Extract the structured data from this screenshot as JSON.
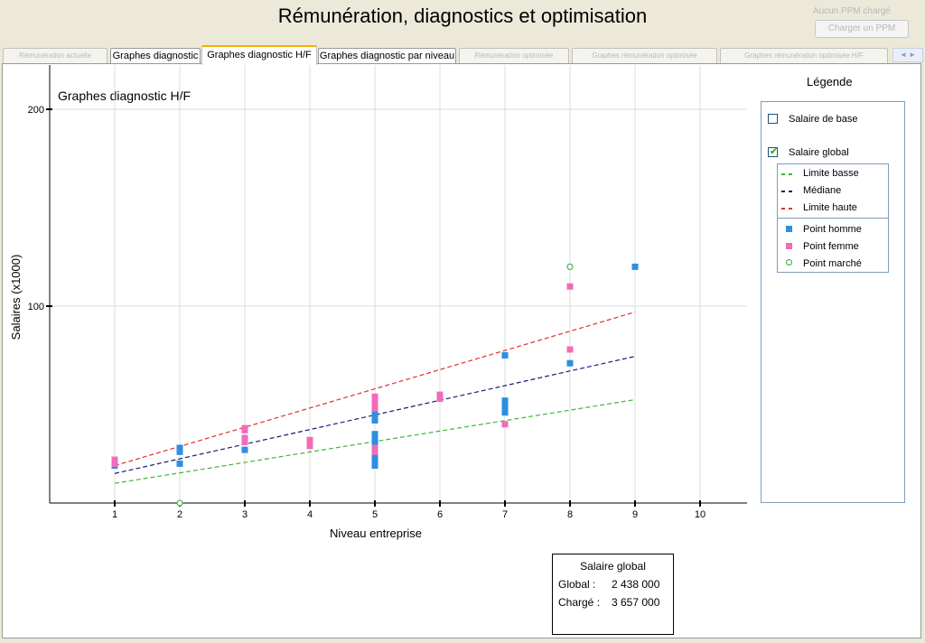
{
  "window": {
    "title": "Rémunération, diagnostics et optimisation",
    "status": "Aucun PPM chargé",
    "load_button": "Charger un PPM"
  },
  "tabs": [
    {
      "label": "Rémunération actuelle",
      "state": "disabled"
    },
    {
      "label": "Graphes diagnostic",
      "state": "enabled"
    },
    {
      "label": "Graphes diagnostic H/F",
      "state": "active"
    },
    {
      "label": "Graphes diagnostic par niveau",
      "state": "enabled"
    },
    {
      "label": "Rémunération optimisée",
      "state": "disabled"
    },
    {
      "label": "Graphes rémunération optimisée",
      "state": "disabled"
    },
    {
      "label": "Graphes rémunération optimisée H/F",
      "state": "disabled"
    }
  ],
  "legend": {
    "title": "Légende",
    "checkboxes": [
      {
        "label": "Salaire de base",
        "checked": false
      },
      {
        "label": "Salaire global",
        "checked": true
      }
    ],
    "lines": [
      {
        "label": "Limite basse",
        "color": "#3cb83c"
      },
      {
        "label": "Médiane",
        "color": "#1a1a7a"
      },
      {
        "label": "Limite haute",
        "color": "#e03030"
      }
    ],
    "points": [
      {
        "label": "Point homme",
        "color": "#2e8ee0",
        "shape": "square"
      },
      {
        "label": "Point femme",
        "color": "#f06cb8",
        "shape": "square"
      },
      {
        "label": "Point marché",
        "color": "#2ea82e",
        "shape": "circle"
      }
    ]
  },
  "summary": {
    "title": "Salaire global",
    "global_label": "Global :",
    "global_value": "2 438 000",
    "charge_label": "Chargé :",
    "charge_value": "3 657 000"
  },
  "chart_data": {
    "type": "scatter",
    "title": "Graphes diagnostic H/F",
    "xlabel": "Niveau entreprise",
    "ylabel": "Salaires (x1000)",
    "xlim": [
      0,
      10
    ],
    "ylim": [
      0,
      200
    ],
    "x_ticks": [
      1,
      2,
      3,
      4,
      5,
      6,
      7,
      8,
      9,
      10
    ],
    "y_ticks": [
      100,
      200
    ],
    "grid": true,
    "series": [
      {
        "name": "Limite basse",
        "kind": "dashed-line",
        "color": "#3cb83c",
        "points": [
          [
            1,
            10
          ],
          [
            9,
            52.5
          ]
        ]
      },
      {
        "name": "Médiane",
        "kind": "dashed-line",
        "color": "#1a1a7a",
        "points": [
          [
            1,
            15
          ],
          [
            9,
            74.5
          ]
        ]
      },
      {
        "name": "Limite haute",
        "kind": "dashed-line",
        "color": "#e03030",
        "points": [
          [
            1,
            19
          ],
          [
            9,
            97
          ]
        ]
      },
      {
        "name": "Point homme",
        "kind": "square",
        "color": "#2e8ee0",
        "points": [
          [
            1,
            19
          ],
          [
            1,
            21
          ],
          [
            2,
            20
          ],
          [
            2,
            26
          ],
          [
            2,
            28
          ],
          [
            3,
            27
          ],
          [
            5,
            19
          ],
          [
            5,
            21
          ],
          [
            5,
            24
          ],
          [
            5,
            26
          ],
          [
            5,
            28
          ],
          [
            5,
            31
          ],
          [
            5,
            33
          ],
          [
            5,
            35
          ],
          [
            5,
            42
          ],
          [
            5,
            44
          ],
          [
            5,
            47
          ],
          [
            7,
            46
          ],
          [
            7,
            48
          ],
          [
            7,
            50
          ],
          [
            7,
            52
          ],
          [
            7,
            75
          ],
          [
            8,
            71
          ],
          [
            9,
            120
          ]
        ]
      },
      {
        "name": "Point femme",
        "kind": "square",
        "color": "#f06cb8",
        "points": [
          [
            1,
            20
          ],
          [
            1,
            22
          ],
          [
            3,
            31
          ],
          [
            3,
            33
          ],
          [
            3,
            37
          ],
          [
            3,
            38
          ],
          [
            4,
            29
          ],
          [
            4,
            31
          ],
          [
            4,
            32
          ],
          [
            5,
            26
          ],
          [
            5,
            28
          ],
          [
            5,
            48
          ],
          [
            5,
            50
          ],
          [
            5,
            52
          ],
          [
            5,
            54
          ],
          [
            6,
            53
          ],
          [
            6,
            55
          ],
          [
            7,
            40
          ],
          [
            8,
            78
          ],
          [
            8,
            110
          ]
        ]
      },
      {
        "name": "Point marché",
        "kind": "circle",
        "color": "#2ea82e",
        "points": [
          [
            2,
            0
          ],
          [
            8,
            120
          ]
        ]
      }
    ]
  }
}
